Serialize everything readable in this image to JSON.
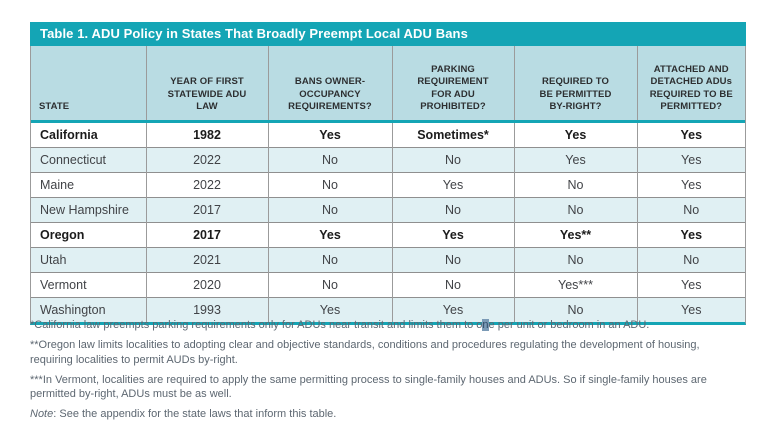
{
  "table": {
    "title": "Table 1. ADU Policy in States That Broadly Preempt Local ADU Bans",
    "columns": [
      "STATE",
      "YEAR OF FIRST\nSTATEWIDE ADU\nLAW",
      "BANS OWNER-\nOCCUPANCY\nREQUIREMENTS?",
      "PARKING\nREQUIREMENT\nFOR ADU\nPROHIBITED?",
      "REQUIRED TO\nBE PERMITTED\nBY-RIGHT?",
      "ATTACHED AND\nDETACHED ADUs\nREQUIRED TO BE\nPERMITTED?"
    ],
    "rows": [
      {
        "cells": [
          "California",
          "1982",
          "Yes",
          "Sometimes*",
          "Yes",
          "Yes"
        ],
        "emphasis": true
      },
      {
        "cells": [
          "Connecticut",
          "2022",
          "No",
          "No",
          "Yes",
          "Yes"
        ],
        "emphasis": false
      },
      {
        "cells": [
          "Maine",
          "2022",
          "No",
          "Yes",
          "No",
          "Yes"
        ],
        "emphasis": false
      },
      {
        "cells": [
          "New Hampshire",
          "2017",
          "No",
          "No",
          "No",
          "No"
        ],
        "emphasis": false
      },
      {
        "cells": [
          "Oregon",
          "2017",
          "Yes",
          "Yes",
          "Yes**",
          "Yes"
        ],
        "emphasis": true
      },
      {
        "cells": [
          "Utah",
          "2021",
          "No",
          "No",
          "No",
          "No"
        ],
        "emphasis": false
      },
      {
        "cells": [
          "Vermont",
          "2020",
          "No",
          "No",
          "Yes***",
          "Yes"
        ],
        "emphasis": false
      },
      {
        "cells": [
          "Washington",
          "1993",
          "Yes",
          "Yes",
          "No",
          "Yes"
        ],
        "emphasis": false
      }
    ]
  },
  "footnotes": {
    "california": {
      "pre": "*California law preempts parking requirements only for ADUs near transit and limits them to o",
      "highlighted_char": "n",
      "post": "e per unit or bedroom in an ADU."
    },
    "oregon": "**Oregon law limits localities to adopting clear and objective standards, conditions and procedures regulating the development of housing, requiring localities to permit AUDs by-right.",
    "vermont": "***In Vermont, localities are required to apply the same permitting process to single-family houses and ADUs. So if single-family houses are permitted by-right, ADUs must be as well.",
    "note_label": "Note",
    "note_text": ": See the appendix for the state laws that inform this table."
  },
  "colors": {
    "accent_teal": "#14a5b5",
    "header_bg": "#b9dce3",
    "stripe_bg": "#e0f0f3",
    "footnote_text": "#5d6771",
    "cursor_highlight_bg": "#7b9ab6"
  }
}
